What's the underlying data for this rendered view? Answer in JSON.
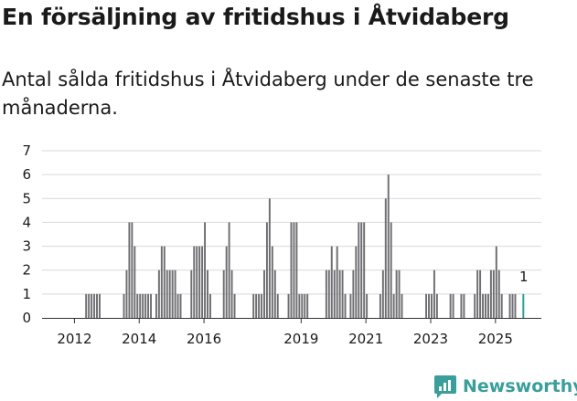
{
  "header": {
    "title": "En försäljning av fritidshus i Åtvidaberg",
    "subtitle": "Antal sålda fritidshus i Åtvidaberg under de senaste tre månaderna."
  },
  "brand": {
    "name": "Newsworthy",
    "color": "#3a9e9a"
  },
  "colors": {
    "bar": "#6f6e73",
    "highlight": "#2a9d94",
    "grid": "#d9d9d9"
  },
  "chart_data": {
    "type": "bar",
    "title": "En försäljning av fritidshus i Åtvidaberg",
    "subtitle": "Antal sålda fritidshus i Åtvidaberg under de senaste tre månaderna.",
    "xlabel": "",
    "ylabel": "",
    "ylim": [
      0,
      7
    ],
    "yticks": [
      0,
      1,
      2,
      3,
      4,
      5,
      6,
      7
    ],
    "grid": true,
    "x_start": "2011-01",
    "x_end": "2026-06",
    "xticks": [
      {
        "label": "2012",
        "pos": 2012.0
      },
      {
        "label": "2014",
        "pos": 2014.0
      },
      {
        "label": "2016",
        "pos": 2016.0
      },
      {
        "label": "2019",
        "pos": 2019.0
      },
      {
        "label": "2021",
        "pos": 2021.0
      },
      {
        "label": "2023",
        "pos": 2023.0
      },
      {
        "label": "2025",
        "pos": 2025.0
      }
    ],
    "series": [
      {
        "name": "Antal sålda fritidshus (rullande tre månader)",
        "start": "2011-12",
        "values": [
          0,
          0,
          0,
          0,
          0,
          1,
          1,
          1,
          1,
          1,
          1,
          0,
          0,
          0,
          0,
          0,
          0,
          0,
          0,
          1,
          2,
          4,
          4,
          3,
          1,
          1,
          1,
          1,
          1,
          1,
          0,
          1,
          2,
          3,
          3,
          2,
          2,
          2,
          2,
          1,
          1,
          0,
          0,
          0,
          2,
          3,
          3,
          3,
          3,
          4,
          2,
          1,
          0,
          0,
          0,
          0,
          2,
          3,
          4,
          2,
          1,
          0,
          0,
          0,
          0,
          0,
          0,
          1,
          1,
          1,
          1,
          2,
          4,
          5,
          3,
          2,
          1,
          0,
          0,
          0,
          1,
          4,
          4,
          4,
          1,
          1,
          1,
          1,
          0,
          0,
          0,
          0,
          0,
          0,
          2,
          2,
          3,
          2,
          3,
          2,
          2,
          1,
          0,
          1,
          2,
          3,
          4,
          4,
          4,
          1,
          0,
          0,
          0,
          0,
          1,
          2,
          5,
          6,
          4,
          1,
          2,
          2,
          1,
          0,
          0,
          0,
          0,
          0,
          0,
          0,
          0,
          1,
          1,
          1,
          2,
          1,
          0,
          0,
          0,
          0,
          1,
          1,
          0,
          0,
          1,
          1,
          0,
          0,
          0,
          1,
          2,
          2,
          1,
          1,
          1,
          2,
          2,
          3,
          2,
          1,
          0,
          0,
          1,
          1,
          1,
          0,
          0,
          1
        ]
      }
    ],
    "annotations": [
      {
        "label": "1",
        "target": "last"
      }
    ],
    "highlight": "last"
  }
}
